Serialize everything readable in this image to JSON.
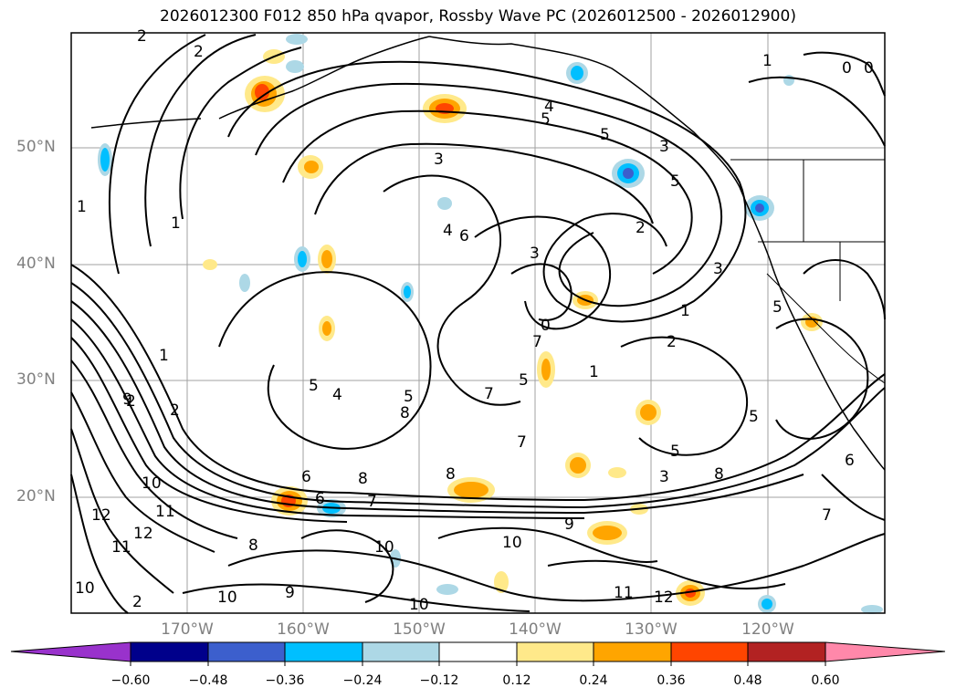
{
  "title": "2026012300 F012 850 hPa qvapor, Rossby Wave PC (2026012500 - 2026012900)",
  "latitude_labels": [
    "50°N",
    "40°N",
    "30°N",
    "20°N"
  ],
  "longitude_labels": [
    "170°W",
    "160°W",
    "150°W",
    "140°W",
    "130°W",
    "120°W"
  ],
  "colorbar": {
    "tick_labels": [
      "−0.60",
      "−0.48",
      "−0.36",
      "−0.24",
      "−0.12",
      "0.12",
      "0.24",
      "0.36",
      "0.48",
      "0.60"
    ],
    "colors": [
      "#9932cc",
      "#00008b",
      "#3c5fcd",
      "#00bfff",
      "#add8e6",
      "#ffffff",
      "#ffe98a",
      "#ffa500",
      "#ff4500",
      "#b22222",
      "#ff88aa"
    ]
  },
  "contour_labels": [
    "2",
    "2",
    "1",
    "1",
    "0",
    "0",
    "4",
    "5",
    "5",
    "3",
    "5",
    "3",
    "1",
    "2",
    "3",
    "4",
    "6",
    "3",
    "5",
    "1",
    "2",
    "1",
    "2",
    "7",
    "5",
    "1",
    "5",
    "4",
    "8",
    "7",
    "7",
    "8",
    "6",
    "7",
    "5",
    "8",
    "3",
    "8",
    "6",
    "2",
    "9",
    "10",
    "11",
    "12",
    "11",
    "12",
    "10",
    "2",
    "8",
    "9",
    "10",
    "10",
    "10",
    "9",
    "10",
    "11",
    "12",
    "7",
    "6",
    "5",
    "5",
    "0"
  ],
  "colors": {
    "contour": "#000000",
    "grid": "#a0a0a0",
    "coast": "#000000"
  }
}
